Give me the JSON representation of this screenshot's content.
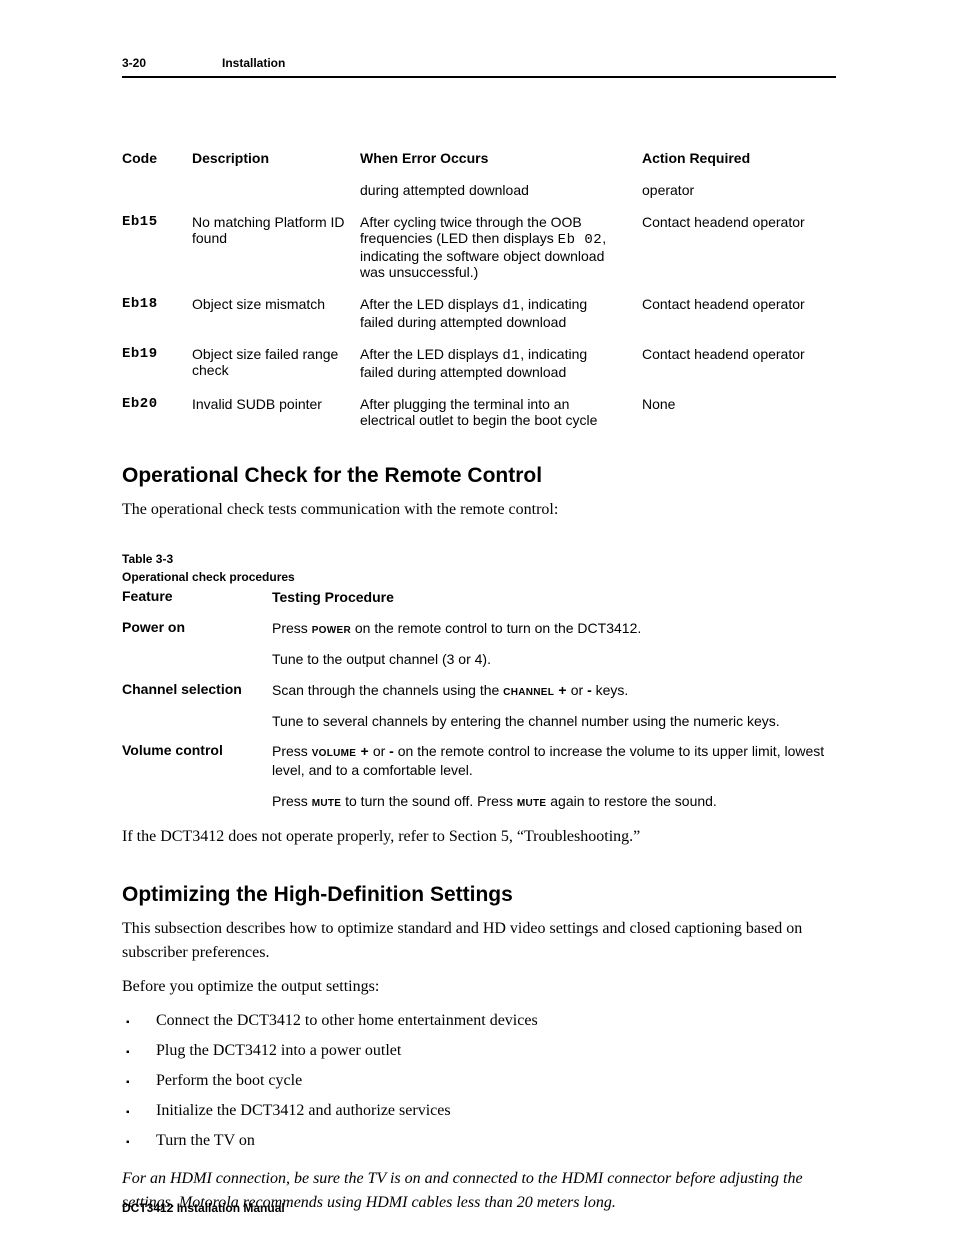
{
  "header": {
    "page_no": "3-20",
    "section": "Installation"
  },
  "table1": {
    "headers": {
      "c1": "Code",
      "c2": "Description",
      "c3": "When Error Occurs",
      "c4": "Action Required"
    },
    "rows": [
      {
        "c1": "",
        "c2": "",
        "c3": "during attempted download",
        "c4": "operator"
      },
      {
        "c1": "Eb15",
        "c2": "No matching Platform ID found",
        "c3_pre": "After cycling twice through the OOB frequencies (LED then displays ",
        "c3_code": "Eb 02",
        "c3_post": ", indicating the software object download was unsuccessful.)",
        "c4": "Contact headend operator"
      },
      {
        "c1": "Eb18",
        "c2": "Object size mismatch",
        "c3_pre": "After the LED displays ",
        "c3_code": "d1",
        "c3_post": ", indicating failed during attempted download",
        "c4": "Contact headend operator"
      },
      {
        "c1": "Eb19",
        "c2": "Object size failed range check",
        "c3_pre": "After the LED displays ",
        "c3_code": "d1",
        "c3_post": ", indicating failed during attempted download",
        "c4": "Contact headend operator"
      },
      {
        "c1": "Eb20",
        "c2": "Invalid SUDB pointer",
        "c3": "After plugging the terminal into an electrical outlet to begin the boot cycle",
        "c4": "None"
      }
    ]
  },
  "section1": {
    "heading": "Operational Check for the Remote Control",
    "intro": "The operational check tests communication with the remote control:",
    "table_label_1": "Table 3-3",
    "table_label_2": "Operational check procedures",
    "headers": {
      "c1": "Feature",
      "c2": "Testing Procedure"
    },
    "rows": [
      {
        "feature": "Power on",
        "lines": [
          {
            "pre": "Press ",
            "sc": "power",
            "post": " on the remote control to turn on the DCT3412."
          },
          {
            "text": "Tune to the output channel (3 or 4)."
          }
        ]
      },
      {
        "feature": "Channel selection",
        "lines": [
          {
            "pre": "Scan through the channels using the ",
            "sc": "channel +",
            "mid": " or ",
            "b": "-",
            "post": " keys."
          },
          {
            "text": "Tune to several channels by entering the channel number using the numeric keys."
          }
        ]
      },
      {
        "feature": "Volume control",
        "lines": [
          {
            "pre": "Press ",
            "sc": "volume +",
            "mid": " or ",
            "b": "-",
            "post": " on the remote control to increase the volume to its upper limit, lowest level, and to a comfortable level."
          },
          {
            "pre": "Press ",
            "sc": "mute",
            "post_mid": " to turn the sound off. Press ",
            "sc2": "mute",
            "post": " again to restore the sound."
          }
        ]
      }
    ],
    "closing": "If the DCT3412 does not operate properly, refer to Section 5, “Troubleshooting.”"
  },
  "section2": {
    "heading": "Optimizing the High-Definition Settings",
    "p1": "This subsection describes how to optimize standard and HD video settings and closed captioning based on subscriber preferences.",
    "p2": "Before you optimize the output settings:",
    "bullets": [
      "Connect the DCT3412 to other home entertainment devices",
      "Plug the DCT3412 into a power outlet",
      "Perform the boot cycle",
      "Initialize the DCT3412 and authorize services",
      "Turn the TV on"
    ],
    "note": "For an HDMI connection, be sure the TV is on and connected to the HDMI connector before adjusting the settings. Motorola recommends using HDMI cables less than 20 meters long."
  },
  "footer": "DCT3412 Installation Manual"
}
